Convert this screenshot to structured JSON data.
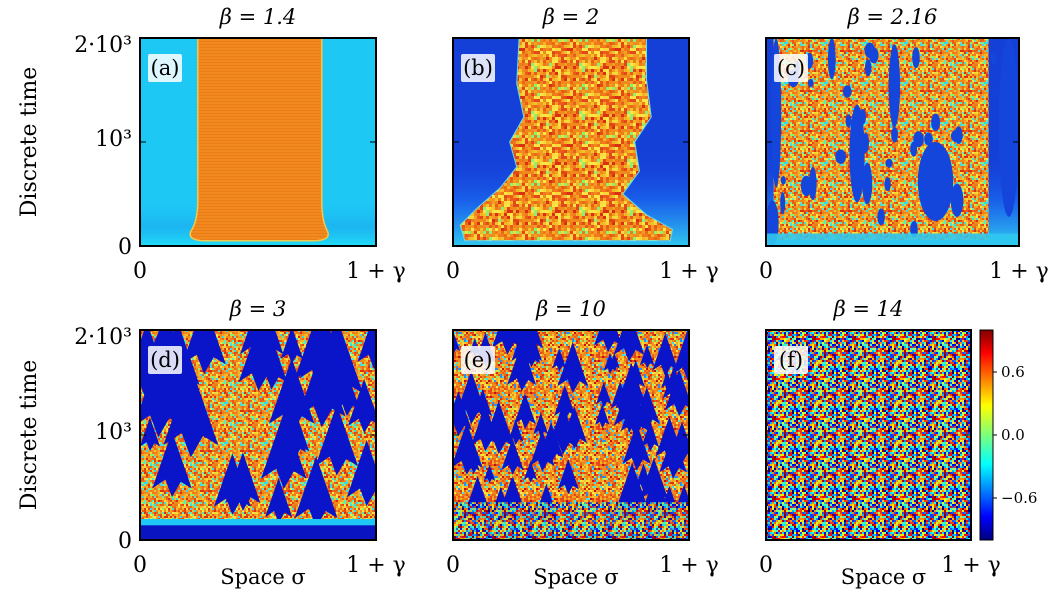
{
  "chart_data": {
    "type": "heatmap",
    "grid_rows": 2,
    "grid_cols": 3,
    "y_axis_label": "Discrete time",
    "y_tick_labels": [
      "0",
      "10³",
      "2·10³"
    ],
    "x_tick_labels": [
      "0",
      "1 + γ"
    ],
    "x_axis_label": "Space σ",
    "colormap": "jet",
    "colorbar": {
      "ticks": [
        "0.6",
        "0.0",
        "−0.6"
      ],
      "values": [
        0.6,
        0.0,
        -0.6
      ],
      "range": [
        -1.0,
        1.0
      ]
    },
    "panels": [
      {
        "label": "(a)",
        "title": "β = 1.4",
        "beta": 1.4
      },
      {
        "label": "(b)",
        "title": "β = 2",
        "beta": 2
      },
      {
        "label": "(c)",
        "title": "β = 2.16",
        "beta": 2.16
      },
      {
        "label": "(d)",
        "title": "β = 3",
        "beta": 3
      },
      {
        "label": "(e)",
        "title": "β = 10",
        "beta": 10
      },
      {
        "label": "(f)",
        "title": "β = 14",
        "beta": 14
      }
    ],
    "colors": {
      "laminar_a": "#1ec8f5",
      "laminar_bc": "#1540d8",
      "laminar_def": "#0a14c0",
      "turbulent": "#f08a1e"
    }
  }
}
